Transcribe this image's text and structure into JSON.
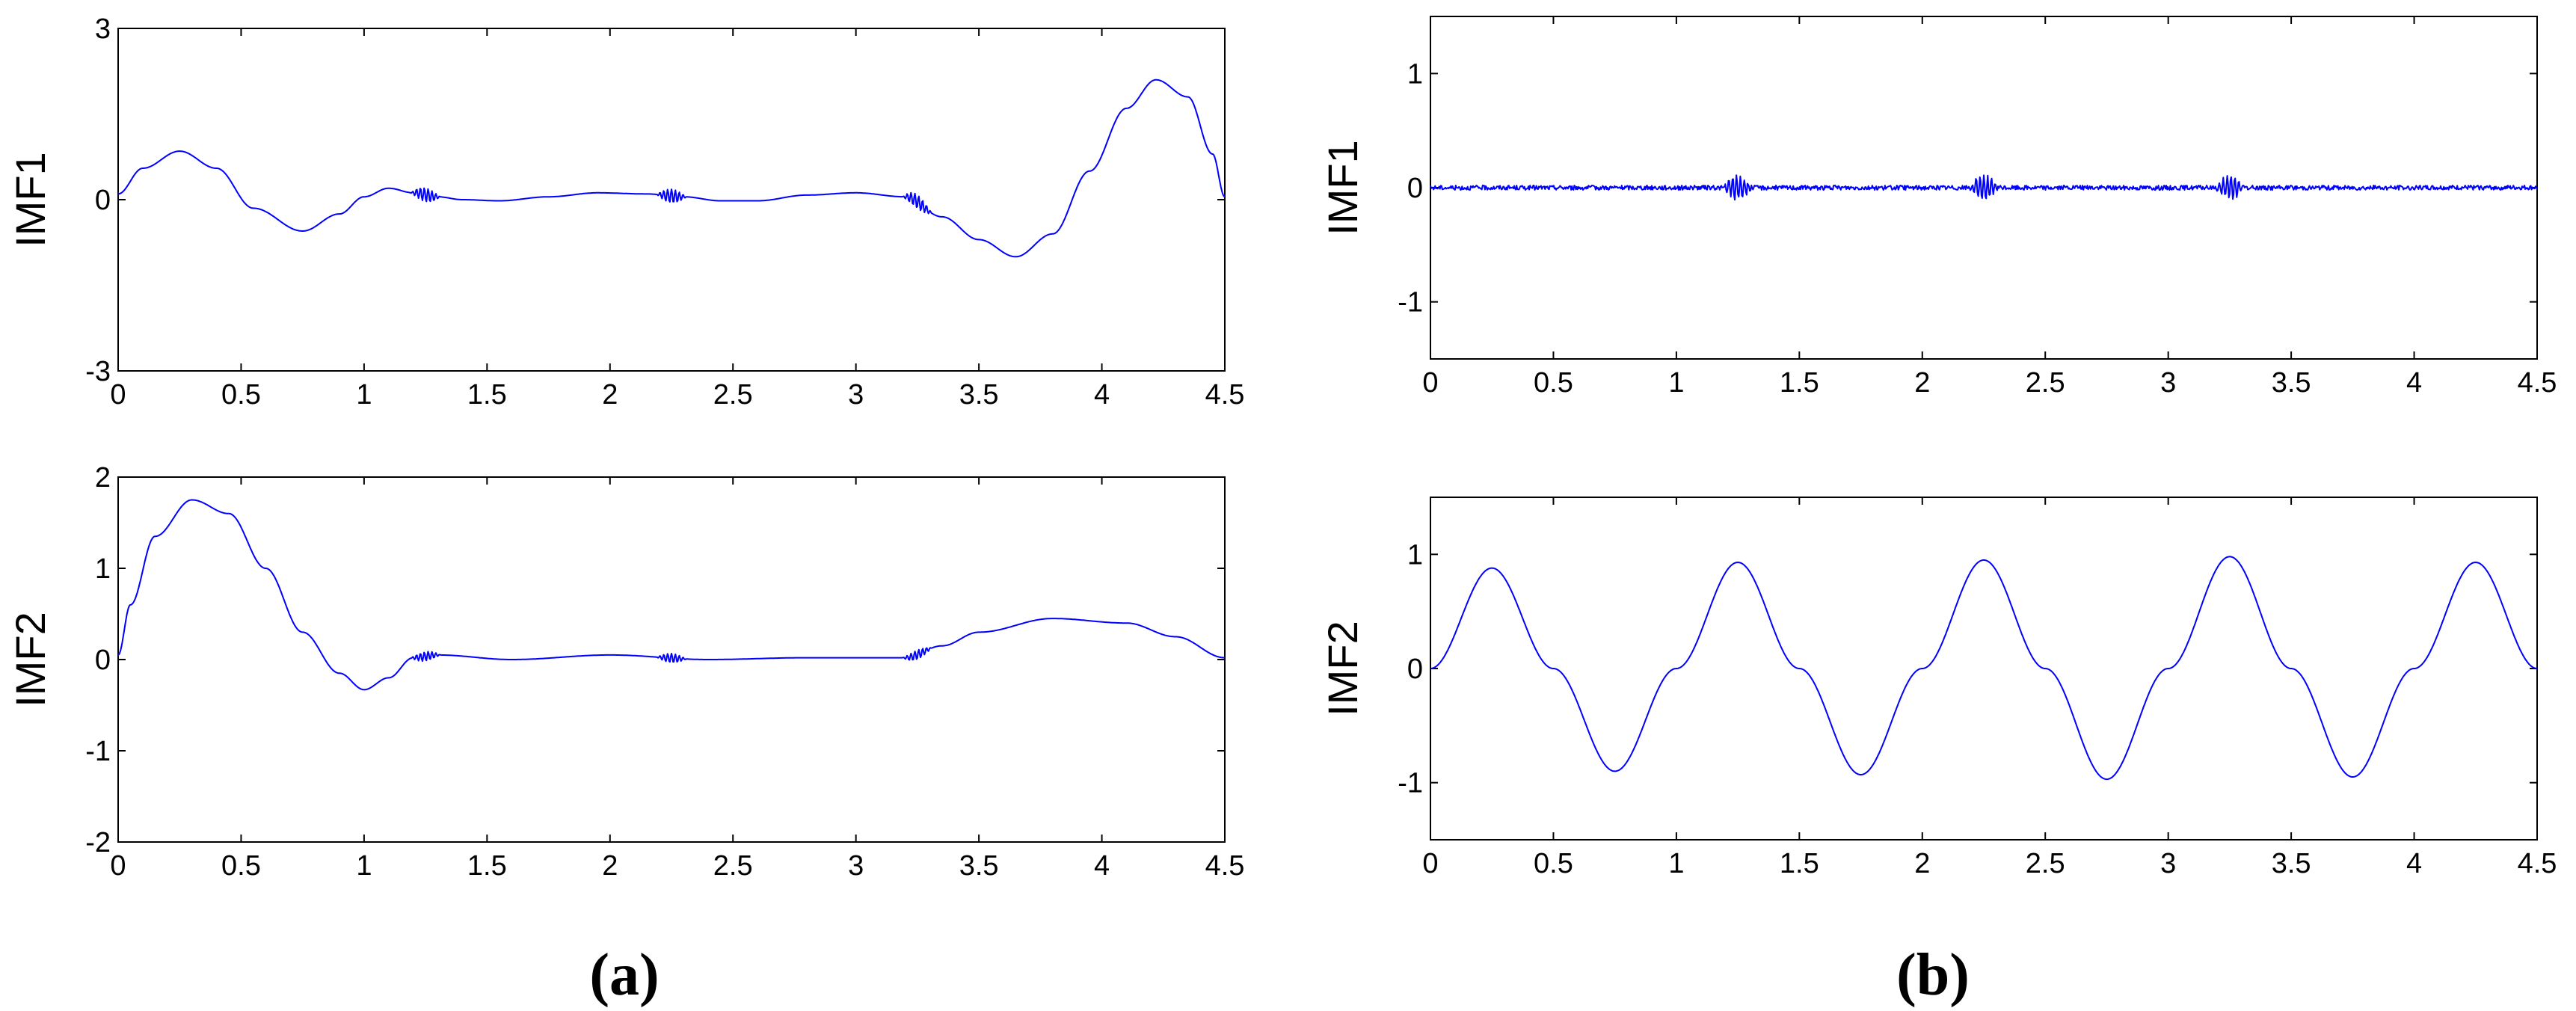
{
  "panel_labels": {
    "a": "(a)",
    "b": "(b)"
  },
  "chart_data": [
    {
      "id": "a-imf1",
      "type": "line",
      "ylabel": "IMF1",
      "xlim": [
        0,
        4.5
      ],
      "ylim": [
        -3,
        3
      ],
      "x_ticks": [
        "0",
        "0.5",
        "1",
        "1.5",
        "2",
        "2.5",
        "3",
        "3.5",
        "4",
        "4.5"
      ],
      "y_ticks": [
        "-3",
        "0",
        "3"
      ],
      "y_tick_values": [
        -3,
        0,
        3
      ],
      "series": [
        {
          "color": "#0000ff",
          "x": [
            0,
            0.1,
            0.25,
            0.4,
            0.55,
            0.75,
            0.9,
            1.0,
            1.1,
            1.2,
            1.3,
            1.4,
            1.55,
            1.75,
            1.95,
            2.15,
            2.3,
            2.45,
            2.6,
            2.8,
            3.0,
            3.2,
            3.35,
            3.5,
            3.65,
            3.8,
            3.95,
            4.1,
            4.22,
            4.35,
            4.45,
            4.5
          ],
          "y": [
            0.1,
            0.55,
            0.85,
            0.55,
            -0.15,
            -0.55,
            -0.25,
            0.05,
            0.2,
            0.12,
            0.05,
            0.0,
            -0.02,
            0.05,
            0.12,
            0.1,
            0.05,
            -0.02,
            -0.02,
            0.08,
            0.12,
            0.05,
            -0.3,
            -0.7,
            -1.0,
            -0.6,
            0.5,
            1.6,
            2.1,
            1.8,
            0.8,
            0.05
          ]
        }
      ],
      "bursts": [
        1.25,
        2.25,
        3.25
      ],
      "burst_amplitude": 0.12
    },
    {
      "id": "a-imf2",
      "type": "line",
      "ylabel": "IMF2",
      "xlim": [
        0,
        4.5
      ],
      "ylim": [
        -2,
        2
      ],
      "x_ticks": [
        "0",
        "0.5",
        "1",
        "1.5",
        "2",
        "2.5",
        "3",
        "3.5",
        "4",
        "4.5"
      ],
      "y_ticks": [
        "-2",
        "-1",
        "0",
        "1",
        "2"
      ],
      "y_tick_values": [
        -2,
        -1,
        0,
        1,
        2
      ],
      "series": [
        {
          "color": "#0000ff",
          "x": [
            0,
            0.05,
            0.15,
            0.3,
            0.45,
            0.6,
            0.75,
            0.9,
            1.0,
            1.1,
            1.2,
            1.3,
            1.6,
            2.0,
            2.4,
            2.8,
            3.2,
            3.35,
            3.5,
            3.8,
            4.1,
            4.3,
            4.5
          ],
          "y": [
            0.05,
            0.6,
            1.35,
            1.75,
            1.6,
            1.0,
            0.3,
            -0.15,
            -0.33,
            -0.2,
            0.02,
            0.05,
            0.0,
            0.05,
            0.0,
            0.02,
            0.02,
            0.15,
            0.3,
            0.45,
            0.4,
            0.25,
            0.02
          ]
        }
      ],
      "bursts": [
        1.25,
        2.25,
        3.25
      ],
      "burst_amplitude": 0.05
    },
    {
      "id": "b-imf1",
      "type": "line",
      "ylabel": "IMF1",
      "xlim": [
        0,
        4.5
      ],
      "ylim": [
        -1.5,
        1.5
      ],
      "x_ticks": [
        "0",
        "0.5",
        "1",
        "1.5",
        "2",
        "2.5",
        "3",
        "3.5",
        "4",
        "4.5"
      ],
      "y_ticks": [
        "-1",
        "0",
        "1"
      ],
      "y_tick_values": [
        -1,
        0,
        1
      ],
      "series": [
        {
          "color": "#0000ff",
          "x": [
            0,
            4.5
          ],
          "y": [
            0,
            0
          ]
        }
      ],
      "noise_amplitude": 0.02,
      "bursts": [
        1.25,
        2.25,
        3.25
      ],
      "burst_amplitude": 0.1
    },
    {
      "id": "b-imf2",
      "type": "line",
      "ylabel": "IMF2",
      "xlim": [
        0,
        4.5
      ],
      "ylim": [
        -1.5,
        1.5
      ],
      "x_ticks": [
        "0",
        "0.5",
        "1",
        "1.5",
        "2",
        "2.5",
        "3",
        "3.5",
        "4",
        "4.5"
      ],
      "y_ticks": [
        "-1",
        "0",
        "1"
      ],
      "y_tick_values": [
        -1,
        0,
        1
      ],
      "series": [
        {
          "color": "#0000ff",
          "x": [
            0,
            0.25,
            0.5,
            0.75,
            1.0,
            1.25,
            1.5,
            1.75,
            2.0,
            2.25,
            2.5,
            2.75,
            3.0,
            3.25,
            3.5,
            3.75,
            4.0,
            4.25,
            4.5
          ],
          "y": [
            0,
            0.88,
            0,
            -0.9,
            0,
            0.93,
            0,
            -0.93,
            0,
            0.95,
            0,
            -0.97,
            0,
            0.98,
            0,
            -0.95,
            0,
            0.93,
            0
          ]
        }
      ]
    }
  ]
}
